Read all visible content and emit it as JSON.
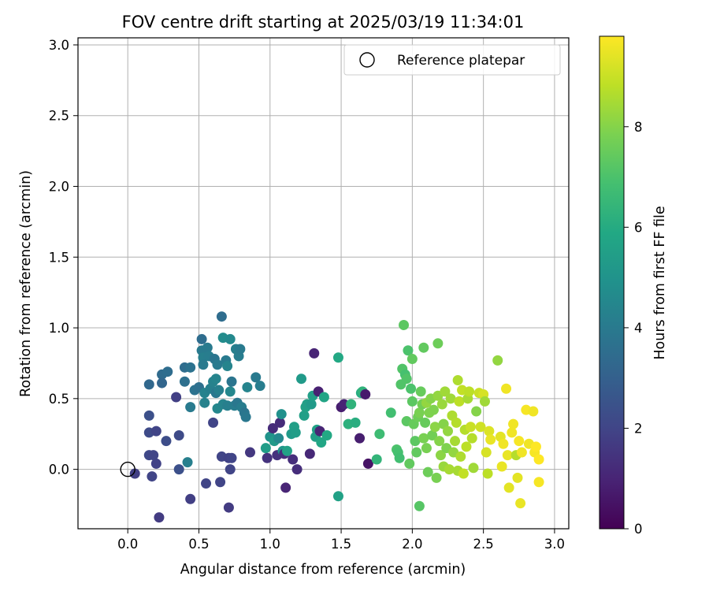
{
  "chart_data": {
    "type": "scatter",
    "title": "FOV centre drift starting at 2025/03/19 11:34:01",
    "xlabel": "Angular distance from reference (arcmin)",
    "ylabel": "Rotation from reference (arcmin)",
    "xlim": [
      -0.35,
      3.1
    ],
    "ylim": [
      -0.42,
      3.05
    ],
    "xticks": [
      0.0,
      0.5,
      1.0,
      1.5,
      2.0,
      2.5,
      3.0
    ],
    "yticks": [
      0.0,
      0.5,
      1.0,
      1.5,
      2.0,
      2.5,
      3.0
    ],
    "grid": true,
    "legend": {
      "placement": "top-right",
      "entries": [
        "Reference platepar"
      ]
    },
    "reference_point": {
      "x": 0.0,
      "y": 0.0,
      "label": "Reference platepar"
    },
    "colorbar": {
      "label": "Hours from first FF file",
      "colormap": "viridis",
      "range": [
        0,
        9.8
      ],
      "ticks": [
        0,
        2,
        4,
        6,
        8
      ]
    },
    "points": [
      {
        "x": 0.05,
        "y": -0.03,
        "t": 1.8
      },
      {
        "x": 0.15,
        "y": 0.1,
        "t": 2.1
      },
      {
        "x": 0.17,
        "y": -0.05,
        "t": 2.0
      },
      {
        "x": 0.2,
        "y": 0.04,
        "t": 1.9
      },
      {
        "x": 0.22,
        "y": -0.34,
        "t": 1.7
      },
      {
        "x": 0.15,
        "y": 0.26,
        "t": 2.2
      },
      {
        "x": 0.18,
        "y": 0.1,
        "t": 2.0
      },
      {
        "x": 0.2,
        "y": 0.27,
        "t": 2.0
      },
      {
        "x": 0.15,
        "y": 0.38,
        "t": 2.4
      },
      {
        "x": 0.15,
        "y": 0.6,
        "t": 3.3
      },
      {
        "x": 0.24,
        "y": 0.67,
        "t": 3.4
      },
      {
        "x": 0.24,
        "y": 0.61,
        "t": 3.2
      },
      {
        "x": 0.28,
        "y": 0.69,
        "t": 3.5
      },
      {
        "x": 0.27,
        "y": 0.2,
        "t": 2.3
      },
      {
        "x": 0.34,
        "y": 0.51,
        "t": 1.8
      },
      {
        "x": 0.36,
        "y": 0.24,
        "t": 2.2
      },
      {
        "x": 0.36,
        "y": 0.0,
        "t": 2.4
      },
      {
        "x": 0.4,
        "y": 0.72,
        "t": 3.5
      },
      {
        "x": 0.4,
        "y": 0.62,
        "t": 3.6
      },
      {
        "x": 0.42,
        "y": 0.05,
        "t": 4.2
      },
      {
        "x": 0.44,
        "y": -0.21,
        "t": 1.8
      },
      {
        "x": 0.44,
        "y": 0.72,
        "t": 3.7
      },
      {
        "x": 0.44,
        "y": 0.44,
        "t": 4.0
      },
      {
        "x": 0.47,
        "y": 0.56,
        "t": 3.7
      },
      {
        "x": 0.5,
        "y": 0.58,
        "t": 3.6
      },
      {
        "x": 0.52,
        "y": 0.92,
        "t": 3.5
      },
      {
        "x": 0.52,
        "y": 0.84,
        "t": 4.0
      },
      {
        "x": 0.53,
        "y": 0.79,
        "t": 4.2
      },
      {
        "x": 0.53,
        "y": 0.74,
        "t": 4.0
      },
      {
        "x": 0.54,
        "y": 0.54,
        "t": 4.3
      },
      {
        "x": 0.54,
        "y": 0.47,
        "t": 4.3
      },
      {
        "x": 0.55,
        "y": -0.1,
        "t": 2.0
      },
      {
        "x": 0.56,
        "y": 0.86,
        "t": 4.0
      },
      {
        "x": 0.57,
        "y": 0.8,
        "t": 4.1
      },
      {
        "x": 0.58,
        "y": 0.57,
        "t": 4.2
      },
      {
        "x": 0.6,
        "y": 0.33,
        "t": 2.0
      },
      {
        "x": 0.6,
        "y": 0.62,
        "t": 4.3
      },
      {
        "x": 0.61,
        "y": 0.78,
        "t": 3.8
      },
      {
        "x": 0.62,
        "y": 0.64,
        "t": 4.4
      },
      {
        "x": 0.62,
        "y": 0.54,
        "t": 3.9
      },
      {
        "x": 0.63,
        "y": 0.43,
        "t": 4.5
      },
      {
        "x": 0.63,
        "y": 0.74,
        "t": 4.0
      },
      {
        "x": 0.64,
        "y": 0.56,
        "t": 4.2
      },
      {
        "x": 0.65,
        "y": -0.09,
        "t": 2.0
      },
      {
        "x": 0.66,
        "y": 1.08,
        "t": 3.5
      },
      {
        "x": 0.66,
        "y": 0.09,
        "t": 2.0
      },
      {
        "x": 0.67,
        "y": 0.46,
        "t": 4.4
      },
      {
        "x": 0.67,
        "y": 0.93,
        "t": 4.7
      },
      {
        "x": 0.69,
        "y": 0.77,
        "t": 4.0
      },
      {
        "x": 0.7,
        "y": 0.73,
        "t": 4.4
      },
      {
        "x": 0.7,
        "y": 0.45,
        "t": 4.2
      },
      {
        "x": 0.71,
        "y": 0.08,
        "t": 1.9
      },
      {
        "x": 0.71,
        "y": -0.27,
        "t": 1.7
      },
      {
        "x": 0.72,
        "y": 0.0,
        "t": 2.0
      },
      {
        "x": 0.72,
        "y": 0.55,
        "t": 4.5
      },
      {
        "x": 0.72,
        "y": 0.92,
        "t": 4.6
      },
      {
        "x": 0.73,
        "y": 0.62,
        "t": 3.8
      },
      {
        "x": 0.73,
        "y": 0.08,
        "t": 2.0
      },
      {
        "x": 0.75,
        "y": 0.45,
        "t": 4.1
      },
      {
        "x": 0.76,
        "y": 0.85,
        "t": 4.2
      },
      {
        "x": 0.77,
        "y": 0.47,
        "t": 3.9
      },
      {
        "x": 0.78,
        "y": 0.8,
        "t": 4.1
      },
      {
        "x": 0.79,
        "y": 0.85,
        "t": 4.0
      },
      {
        "x": 0.8,
        "y": 0.44,
        "t": 4.1
      },
      {
        "x": 0.82,
        "y": 0.4,
        "t": 3.8
      },
      {
        "x": 0.83,
        "y": 0.37,
        "t": 3.9
      },
      {
        "x": 0.84,
        "y": 0.58,
        "t": 4.4
      },
      {
        "x": 0.86,
        "y": 0.12,
        "t": 1.6
      },
      {
        "x": 0.9,
        "y": 0.65,
        "t": 4.0
      },
      {
        "x": 0.93,
        "y": 0.59,
        "t": 4.1
      },
      {
        "x": 0.97,
        "y": 0.15,
        "t": 5.4
      },
      {
        "x": 0.98,
        "y": 0.08,
        "t": 1.4
      },
      {
        "x": 1.0,
        "y": 0.23,
        "t": 5.0
      },
      {
        "x": 1.02,
        "y": 0.29,
        "t": 1.2
      },
      {
        "x": 1.03,
        "y": 0.2,
        "t": 5.3
      },
      {
        "x": 1.05,
        "y": 0.1,
        "t": 1.4
      },
      {
        "x": 1.06,
        "y": 0.22,
        "t": 4.6
      },
      {
        "x": 1.07,
        "y": 0.33,
        "t": 1.2
      },
      {
        "x": 1.08,
        "y": 0.39,
        "t": 4.9
      },
      {
        "x": 1.09,
        "y": 0.13,
        "t": 5.1
      },
      {
        "x": 1.1,
        "y": 0.11,
        "t": 1.3
      },
      {
        "x": 1.11,
        "y": -0.13,
        "t": 1.0
      },
      {
        "x": 1.12,
        "y": 0.13,
        "t": 5.6
      },
      {
        "x": 1.15,
        "y": 0.25,
        "t": 5.3
      },
      {
        "x": 1.16,
        "y": 0.07,
        "t": 1.3
      },
      {
        "x": 1.17,
        "y": 0.3,
        "t": 5.5
      },
      {
        "x": 1.18,
        "y": 0.26,
        "t": 5.4
      },
      {
        "x": 1.19,
        "y": 0.0,
        "t": 1.3
      },
      {
        "x": 1.22,
        "y": 0.64,
        "t": 5.3
      },
      {
        "x": 1.24,
        "y": 0.38,
        "t": 5.5
      },
      {
        "x": 1.25,
        "y": 0.44,
        "t": 5.6
      },
      {
        "x": 1.26,
        "y": 0.46,
        "t": 5.5
      },
      {
        "x": 1.28,
        "y": 0.11,
        "t": 1.1
      },
      {
        "x": 1.29,
        "y": 0.46,
        "t": 5.3
      },
      {
        "x": 1.3,
        "y": 0.52,
        "t": 5.5
      },
      {
        "x": 1.31,
        "y": 0.82,
        "t": 1.0
      },
      {
        "x": 1.32,
        "y": 0.23,
        "t": 5.5
      },
      {
        "x": 1.33,
        "y": 0.28,
        "t": 5.6
      },
      {
        "x": 1.34,
        "y": 0.55,
        "t": 0.9
      },
      {
        "x": 1.35,
        "y": 0.27,
        "t": 1.0
      },
      {
        "x": 1.36,
        "y": 0.19,
        "t": 5.8
      },
      {
        "x": 1.38,
        "y": 0.51,
        "t": 5.7
      },
      {
        "x": 1.4,
        "y": 0.24,
        "t": 5.9
      },
      {
        "x": 1.48,
        "y": 0.79,
        "t": 5.9
      },
      {
        "x": 1.48,
        "y": -0.19,
        "t": 5.6
      },
      {
        "x": 1.5,
        "y": 0.44,
        "t": 0.8
      },
      {
        "x": 1.52,
        "y": 0.46,
        "t": 1.0
      },
      {
        "x": 1.55,
        "y": 0.32,
        "t": 6.2
      },
      {
        "x": 1.57,
        "y": 0.46,
        "t": 6.3
      },
      {
        "x": 1.6,
        "y": 0.33,
        "t": 6.1
      },
      {
        "x": 1.63,
        "y": 0.22,
        "t": 0.8
      },
      {
        "x": 1.64,
        "y": 0.54,
        "t": 6.0
      },
      {
        "x": 1.65,
        "y": 0.55,
        "t": 6.3
      },
      {
        "x": 1.67,
        "y": 0.53,
        "t": 0.7
      },
      {
        "x": 1.69,
        "y": 0.04,
        "t": 0.5
      },
      {
        "x": 1.75,
        "y": 0.07,
        "t": 6.4
      },
      {
        "x": 1.77,
        "y": 0.25,
        "t": 6.7
      },
      {
        "x": 1.85,
        "y": 0.4,
        "t": 6.8
      },
      {
        "x": 1.89,
        "y": 0.14,
        "t": 7.0
      },
      {
        "x": 1.9,
        "y": 0.12,
        "t": 6.9
      },
      {
        "x": 1.91,
        "y": 0.08,
        "t": 6.8
      },
      {
        "x": 1.92,
        "y": 0.6,
        "t": 7.1
      },
      {
        "x": 1.93,
        "y": 0.71,
        "t": 7.1
      },
      {
        "x": 1.94,
        "y": 1.02,
        "t": 7.3
      },
      {
        "x": 1.95,
        "y": 0.67,
        "t": 6.9
      },
      {
        "x": 1.96,
        "y": 0.64,
        "t": 7.1
      },
      {
        "x": 1.96,
        "y": 0.34,
        "t": 7.3
      },
      {
        "x": 1.97,
        "y": 0.84,
        "t": 7.0
      },
      {
        "x": 1.98,
        "y": 0.04,
        "t": 7.4
      },
      {
        "x": 1.99,
        "y": 0.57,
        "t": 7.0
      },
      {
        "x": 2.0,
        "y": 0.48,
        "t": 7.3
      },
      {
        "x": 2.0,
        "y": 0.78,
        "t": 7.4
      },
      {
        "x": 2.01,
        "y": 0.32,
        "t": 7.5
      },
      {
        "x": 2.02,
        "y": 0.2,
        "t": 7.3
      },
      {
        "x": 2.03,
        "y": 0.12,
        "t": 7.4
      },
      {
        "x": 2.04,
        "y": 0.37,
        "t": 7.6
      },
      {
        "x": 2.05,
        "y": -0.26,
        "t": 7.2
      },
      {
        "x": 2.05,
        "y": 0.4,
        "t": 7.8
      },
      {
        "x": 2.06,
        "y": 0.55,
        "t": 7.5
      },
      {
        "x": 2.07,
        "y": 0.46,
        "t": 7.7
      },
      {
        "x": 2.08,
        "y": 0.86,
        "t": 7.4
      },
      {
        "x": 2.08,
        "y": 0.22,
        "t": 7.8
      },
      {
        "x": 2.09,
        "y": 0.33,
        "t": 7.5
      },
      {
        "x": 2.1,
        "y": 0.15,
        "t": 7.8
      },
      {
        "x": 2.1,
        "y": 0.47,
        "t": 8.2
      },
      {
        "x": 2.11,
        "y": -0.02,
        "t": 7.6
      },
      {
        "x": 2.12,
        "y": 0.4,
        "t": 7.9
      },
      {
        "x": 2.13,
        "y": 0.5,
        "t": 8.0
      },
      {
        "x": 2.14,
        "y": 0.24,
        "t": 7.7
      },
      {
        "x": 2.15,
        "y": 0.42,
        "t": 7.9
      },
      {
        "x": 2.16,
        "y": 0.3,
        "t": 8.1
      },
      {
        "x": 2.17,
        "y": -0.06,
        "t": 7.8
      },
      {
        "x": 2.18,
        "y": 0.89,
        "t": 7.6
      },
      {
        "x": 2.18,
        "y": 0.52,
        "t": 8.2
      },
      {
        "x": 2.19,
        "y": 0.2,
        "t": 8.0
      },
      {
        "x": 2.2,
        "y": 0.1,
        "t": 8.1
      },
      {
        "x": 2.21,
        "y": 0.46,
        "t": 8.3
      },
      {
        "x": 2.22,
        "y": 0.32,
        "t": 8.0
      },
      {
        "x": 2.22,
        "y": 0.02,
        "t": 8.3
      },
      {
        "x": 2.23,
        "y": 0.55,
        "t": 8.4
      },
      {
        "x": 2.24,
        "y": 0.15,
        "t": 7.9
      },
      {
        "x": 2.25,
        "y": 0.27,
        "t": 8.2
      },
      {
        "x": 2.26,
        "y": 0.0,
        "t": 8.5
      },
      {
        "x": 2.27,
        "y": 0.5,
        "t": 8.4
      },
      {
        "x": 2.28,
        "y": 0.38,
        "t": 8.6
      },
      {
        "x": 2.29,
        "y": 0.12,
        "t": 8.2
      },
      {
        "x": 2.3,
        "y": 0.2,
        "t": 8.5
      },
      {
        "x": 2.31,
        "y": 0.33,
        "t": 8.7
      },
      {
        "x": 2.32,
        "y": 0.63,
        "t": 8.6
      },
      {
        "x": 2.32,
        "y": -0.01,
        "t": 8.5
      },
      {
        "x": 2.33,
        "y": 0.48,
        "t": 8.8
      },
      {
        "x": 2.34,
        "y": 0.09,
        "t": 8.6
      },
      {
        "x": 2.35,
        "y": 0.56,
        "t": 8.9
      },
      {
        "x": 2.36,
        "y": -0.03,
        "t": 8.9
      },
      {
        "x": 2.37,
        "y": 0.28,
        "t": 8.7
      },
      {
        "x": 2.38,
        "y": 0.16,
        "t": 8.8
      },
      {
        "x": 2.39,
        "y": 0.5,
        "t": 8.5
      },
      {
        "x": 2.4,
        "y": 0.55,
        "t": 8.8
      },
      {
        "x": 2.41,
        "y": 0.3,
        "t": 9.0
      },
      {
        "x": 2.42,
        "y": 0.22,
        "t": 8.7
      },
      {
        "x": 2.43,
        "y": 0.01,
        "t": 8.4
      },
      {
        "x": 2.45,
        "y": 0.41,
        "t": 8.0
      },
      {
        "x": 2.47,
        "y": 0.54,
        "t": 9.0
      },
      {
        "x": 2.48,
        "y": 0.3,
        "t": 9.1
      },
      {
        "x": 2.5,
        "y": 0.53,
        "t": 9.2
      },
      {
        "x": 2.51,
        "y": 0.48,
        "t": 8.4
      },
      {
        "x": 2.52,
        "y": 0.12,
        "t": 9.2
      },
      {
        "x": 2.53,
        "y": -0.03,
        "t": 8.8
      },
      {
        "x": 2.54,
        "y": 0.27,
        "t": 9.3
      },
      {
        "x": 2.55,
        "y": 0.21,
        "t": 9.5
      },
      {
        "x": 2.6,
        "y": 0.77,
        "t": 8.2
      },
      {
        "x": 2.62,
        "y": 0.23,
        "t": 9.4
      },
      {
        "x": 2.63,
        "y": 0.02,
        "t": 9.5
      },
      {
        "x": 2.64,
        "y": 0.18,
        "t": 9.6
      },
      {
        "x": 2.66,
        "y": 0.57,
        "t": 9.6
      },
      {
        "x": 2.67,
        "y": 0.1,
        "t": 9.5
      },
      {
        "x": 2.68,
        "y": -0.13,
        "t": 9.4
      },
      {
        "x": 2.7,
        "y": 0.26,
        "t": 9.6
      },
      {
        "x": 2.71,
        "y": 0.32,
        "t": 9.6
      },
      {
        "x": 2.73,
        "y": 0.1,
        "t": 8.7
      },
      {
        "x": 2.74,
        "y": -0.06,
        "t": 9.4
      },
      {
        "x": 2.75,
        "y": 0.2,
        "t": 9.7
      },
      {
        "x": 2.76,
        "y": -0.24,
        "t": 9.5
      },
      {
        "x": 2.77,
        "y": 0.12,
        "t": 9.6
      },
      {
        "x": 2.8,
        "y": 0.42,
        "t": 9.7
      },
      {
        "x": 2.82,
        "y": 0.18,
        "t": 9.6
      },
      {
        "x": 2.85,
        "y": 0.41,
        "t": 9.6
      },
      {
        "x": 2.86,
        "y": 0.12,
        "t": 9.7
      },
      {
        "x": 2.87,
        "y": 0.16,
        "t": 9.8
      },
      {
        "x": 2.89,
        "y": -0.09,
        "t": 9.7
      },
      {
        "x": 2.89,
        "y": 0.07,
        "t": 9.8
      }
    ]
  }
}
